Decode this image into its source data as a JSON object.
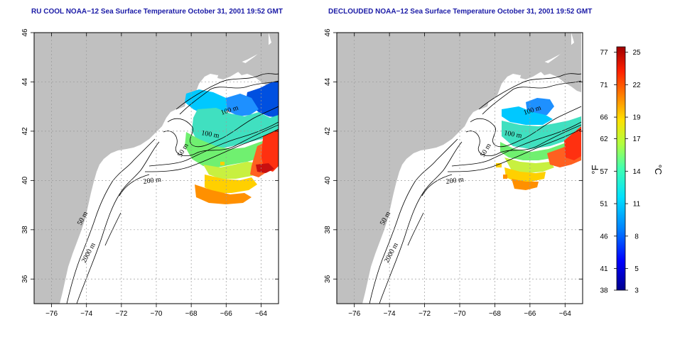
{
  "panels": [
    {
      "id": "left",
      "title": "RU COOL NOAA−12 Sea Surface Temperature October 31, 2001 19:52 GMT",
      "contour_labels": [
        "100 m",
        "100 m",
        "50 m",
        "200 m",
        "50 m",
        "2000 m"
      ]
    },
    {
      "id": "right",
      "title": "DECLOUDED NOAA−12 Sea Surface Temperature October 31, 2001 19:52 GMT",
      "contour_labels": [
        "100 m",
        "100 m",
        "50 m",
        "200 m",
        "50 m",
        "2000 m"
      ]
    }
  ],
  "axes": {
    "lon_ticks": [
      "−76",
      "−74",
      "−72",
      "−70",
      "−68",
      "−66",
      "−64"
    ],
    "lat_ticks": [
      "36",
      "38",
      "40",
      "42",
      "44",
      "46"
    ],
    "lon_range": [
      -77,
      -63
    ],
    "lat_range": [
      35,
      46
    ]
  },
  "colorbar": {
    "fahrenheit_ticks": [
      "77",
      "71",
      "66",
      "62",
      "57",
      "51",
      "46",
      "41",
      "38"
    ],
    "celsius_ticks": [
      "25",
      "22",
      "19",
      "17",
      "14",
      "11",
      "8",
      "5",
      "3"
    ],
    "fahrenheit_unit": "°F",
    "celsius_unit": "°C",
    "range_celsius": [
      3,
      25.5
    ]
  },
  "colors": {
    "land": "#c0c0c0",
    "title": "#1a1aa6",
    "colorbar_stops": [
      "#00008c",
      "#0000ff",
      "#0080ff",
      "#00e0ff",
      "#40ffb0",
      "#b0ff40",
      "#ffe000",
      "#ff8000",
      "#ff2000",
      "#a00000"
    ]
  }
}
